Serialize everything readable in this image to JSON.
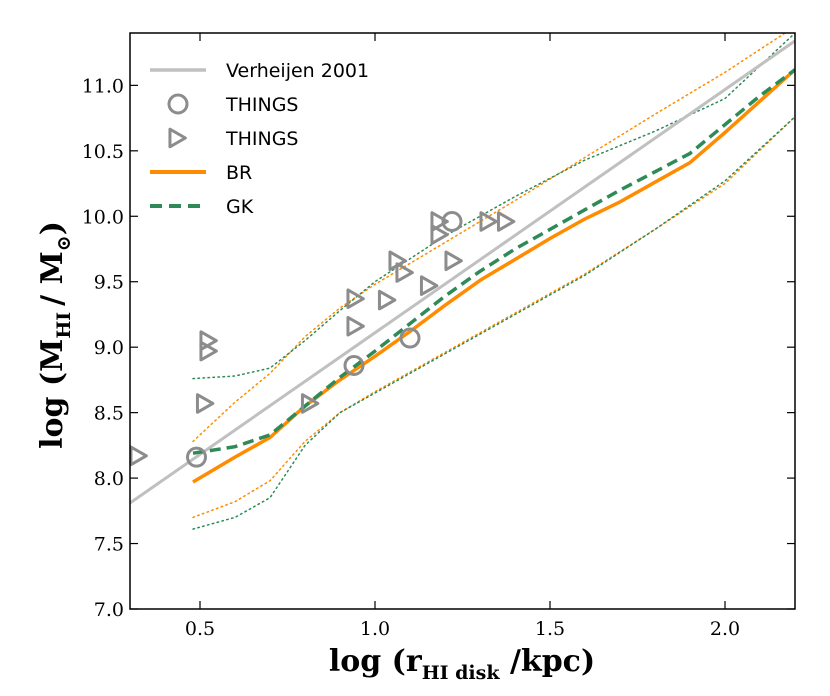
{
  "chart_data": {
    "type": "line",
    "xlabel": {
      "main": "log (r",
      "sub": "HI disk",
      "tail": " /kpc)"
    },
    "ylabel": {
      "main": "log (M",
      "sub": "HI",
      "mid": "/ M",
      "sub2": "⊙",
      "tail": ")"
    },
    "xlim": [
      0.3,
      2.2
    ],
    "ylim": [
      7.0,
      11.4
    ],
    "xticks": [
      0.5,
      1.0,
      1.5,
      2.0
    ],
    "xtick_labels": [
      "0.5",
      "1.0",
      "1.5",
      "2.0"
    ],
    "yticks": [
      7.0,
      7.5,
      8.0,
      8.5,
      9.0,
      9.5,
      10.0,
      10.5,
      11.0
    ],
    "ytick_labels": [
      "7.0",
      "7.5",
      "8.0",
      "8.5",
      "9.0",
      "9.5",
      "10.0",
      "10.5",
      "11.0"
    ],
    "legend_position": "top-left",
    "series": [
      {
        "name": "Verheijen 2001",
        "kind": "line",
        "color": "#c0c0c0",
        "dash": "solid",
        "width": 3,
        "x": [
          0.3,
          2.2
        ],
        "y": [
          7.81,
          11.34
        ]
      },
      {
        "name": "THINGS",
        "kind": "circle",
        "color": "#8c8c8c",
        "x": [
          0.49,
          0.94,
          1.1,
          1.22
        ],
        "y": [
          8.16,
          8.86,
          9.07,
          9.96
        ]
      },
      {
        "name": "THINGS",
        "kind": "triangle",
        "color": "#8c8c8c",
        "x": [
          0.32,
          0.51,
          0.52,
          0.52,
          0.81,
          0.94,
          0.94,
          1.03,
          1.06,
          1.08,
          1.15,
          1.18,
          1.18,
          1.22,
          1.32,
          1.37
        ],
        "y": [
          8.17,
          8.57,
          8.97,
          9.05,
          8.57,
          9.16,
          9.37,
          9.36,
          9.66,
          9.57,
          9.47,
          9.86,
          9.96,
          9.66,
          9.96,
          9.96
        ]
      },
      {
        "name": "BR",
        "kind": "line",
        "color": "#ff8c00",
        "dash": "solid",
        "width": 3.5,
        "x": [
          0.48,
          0.6,
          0.7,
          0.8,
          0.9,
          1.0,
          1.1,
          1.2,
          1.3,
          1.4,
          1.5,
          1.6,
          1.7,
          1.8,
          1.9,
          2.0,
          2.1,
          2.2
        ],
        "y": [
          7.97,
          8.16,
          8.31,
          8.55,
          8.75,
          8.93,
          9.12,
          9.32,
          9.51,
          9.67,
          9.83,
          9.98,
          10.11,
          10.26,
          10.41,
          10.64,
          10.88,
          11.12
        ]
      },
      {
        "name": "GK",
        "kind": "line",
        "color": "#2e8b57",
        "dash": "dashed",
        "width": 3.5,
        "x": [
          0.48,
          0.6,
          0.7,
          0.8,
          0.9,
          1.0,
          1.1,
          1.2,
          1.3,
          1.4,
          1.5,
          1.6,
          1.7,
          1.8,
          1.9,
          2.0,
          2.1,
          2.2
        ],
        "y": [
          8.19,
          8.24,
          8.33,
          8.55,
          8.77,
          8.97,
          9.18,
          9.39,
          9.58,
          9.75,
          9.9,
          10.05,
          10.2,
          10.34,
          10.48,
          10.7,
          10.92,
          11.12
        ]
      },
      {
        "kind": "band",
        "color": "#ff8c00",
        "dash": "dotted",
        "width": 1.5,
        "x": [
          0.48,
          0.6,
          0.7,
          0.8,
          0.9,
          1.0,
          1.2,
          1.4,
          1.6,
          1.8,
          2.0,
          2.2
        ],
        "y": [
          8.28,
          8.58,
          8.8,
          9.08,
          9.3,
          9.48,
          9.8,
          10.12,
          10.45,
          10.78,
          11.1,
          11.45
        ]
      },
      {
        "kind": "band",
        "color": "#ff8c00",
        "dash": "dotted",
        "width": 1.5,
        "x": [
          0.48,
          0.6,
          0.7,
          0.8,
          0.9,
          1.0,
          1.2,
          1.4,
          1.6,
          1.8,
          2.0,
          2.2
        ],
        "y": [
          7.7,
          7.82,
          7.98,
          8.28,
          8.5,
          8.66,
          8.96,
          9.26,
          9.56,
          9.9,
          10.25,
          10.76
        ]
      },
      {
        "kind": "band",
        "color": "#2e8b57",
        "dash": "dotted",
        "width": 1.5,
        "x": [
          0.48,
          0.6,
          0.7,
          0.8,
          0.9,
          1.0,
          1.2,
          1.4,
          1.6,
          1.8,
          2.0,
          2.2
        ],
        "y": [
          8.76,
          8.78,
          8.84,
          9.05,
          9.28,
          9.5,
          9.85,
          10.15,
          10.43,
          10.65,
          10.9,
          11.4
        ]
      },
      {
        "kind": "band",
        "color": "#2e8b57",
        "dash": "dotted",
        "width": 1.5,
        "x": [
          0.48,
          0.6,
          0.7,
          0.8,
          0.9,
          1.0,
          1.2,
          1.4,
          1.6,
          1.8,
          2.0,
          2.2
        ],
        "y": [
          7.61,
          7.7,
          7.85,
          8.25,
          8.5,
          8.65,
          8.95,
          9.25,
          9.55,
          9.9,
          10.27,
          10.76
        ]
      }
    ]
  }
}
